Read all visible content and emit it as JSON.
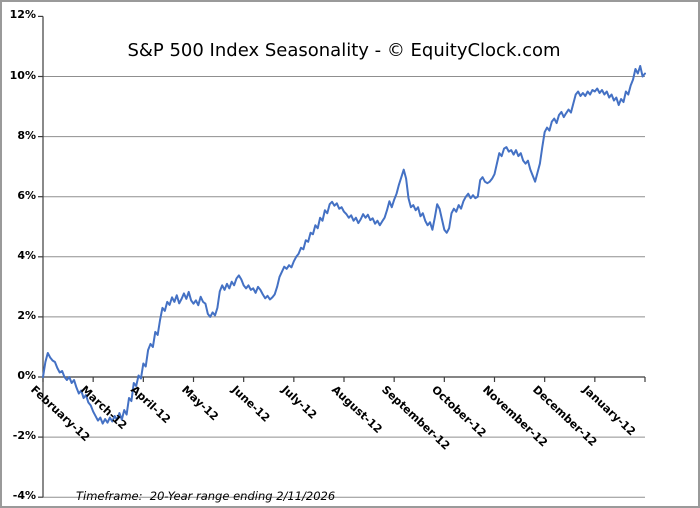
{
  "chart": {
    "title": "S&P 500 Index Seasonality - © EquityClock.com",
    "footnote": "Timeframe:  20-Year range ending 2/11/2026"
  },
  "colors": {
    "line": "#4471C4",
    "grid": "#8f8f8f",
    "axis": "#3c3c3c",
    "text": "#000000",
    "border": "#9a9a9a"
  },
  "chart_data": {
    "type": "line",
    "title": "S&P 500 Index Seasonality - © EquityClock.com",
    "footnote": "Timeframe:  20-Year range ending 2/11/2026",
    "xlabel": "",
    "ylabel": "",
    "ylim": [
      -4,
      12
    ],
    "grid": "horizontal",
    "legend": "none",
    "line_color": "#4471C4",
    "y_ticks": [
      12,
      10,
      8,
      6,
      4,
      2,
      0,
      -2,
      -4
    ],
    "y_tick_labels": [
      "12%",
      "10%",
      "8%",
      "6%",
      "4%",
      "2%",
      "0%",
      "-2%",
      "-4%"
    ],
    "x_categories": [
      "February-12",
      "March-12",
      "April-12",
      "May-12",
      "June-12",
      "July-12",
      "August-12",
      "September-12",
      "October-12",
      "November-12",
      "December-12",
      "January-12"
    ],
    "values": [
      0.0,
      0.5,
      0.8,
      0.65,
      0.55,
      0.5,
      0.3,
      0.15,
      0.2,
      0.0,
      -0.1,
      0.0,
      -0.2,
      -0.1,
      -0.35,
      -0.55,
      -0.45,
      -0.7,
      -0.6,
      -0.85,
      -0.95,
      -1.15,
      -1.3,
      -1.45,
      -1.35,
      -1.55,
      -1.4,
      -1.52,
      -1.35,
      -1.48,
      -1.3,
      -1.42,
      -1.2,
      -1.42,
      -1.1,
      -1.25,
      -0.7,
      -0.8,
      -0.2,
      -0.3,
      0.05,
      -0.05,
      0.45,
      0.35,
      0.9,
      1.1,
      1.0,
      1.5,
      1.4,
      1.9,
      2.3,
      2.2,
      2.5,
      2.4,
      2.65,
      2.5,
      2.72,
      2.45,
      2.6,
      2.78,
      2.6,
      2.83,
      2.55,
      2.44,
      2.55,
      2.39,
      2.67,
      2.5,
      2.44,
      2.1,
      2.0,
      2.15,
      2.05,
      2.3,
      2.85,
      3.05,
      2.9,
      3.1,
      2.95,
      3.17,
      3.05,
      3.28,
      3.38,
      3.25,
      3.05,
      2.95,
      3.05,
      2.9,
      2.95,
      2.8,
      3.0,
      2.9,
      2.75,
      2.62,
      2.7,
      2.58,
      2.65,
      2.75,
      3.0,
      3.33,
      3.5,
      3.67,
      3.6,
      3.72,
      3.65,
      3.85,
      4.0,
      4.1,
      4.3,
      4.25,
      4.55,
      4.5,
      4.8,
      4.75,
      5.05,
      4.95,
      5.3,
      5.2,
      5.55,
      5.45,
      5.75,
      5.83,
      5.7,
      5.78,
      5.6,
      5.65,
      5.5,
      5.42,
      5.3,
      5.38,
      5.2,
      5.3,
      5.12,
      5.25,
      5.42,
      5.3,
      5.4,
      5.22,
      5.28,
      5.1,
      5.2,
      5.05,
      5.18,
      5.3,
      5.55,
      5.85,
      5.65,
      5.9,
      6.1,
      6.4,
      6.65,
      6.9,
      6.6,
      5.95,
      5.65,
      5.72,
      5.55,
      5.65,
      5.35,
      5.45,
      5.2,
      5.05,
      5.15,
      4.9,
      5.3,
      5.75,
      5.6,
      5.25,
      4.9,
      4.8,
      4.95,
      5.45,
      5.6,
      5.5,
      5.72,
      5.6,
      5.85,
      6.0,
      6.1,
      5.95,
      6.05,
      5.95,
      6.0,
      6.55,
      6.65,
      6.5,
      6.45,
      6.5,
      6.6,
      6.75,
      7.1,
      7.45,
      7.35,
      7.6,
      7.65,
      7.5,
      7.55,
      7.4,
      7.55,
      7.35,
      7.45,
      7.2,
      7.1,
      7.2,
      6.9,
      6.7,
      6.5,
      6.8,
      7.1,
      7.65,
      8.15,
      8.3,
      8.2,
      8.5,
      8.6,
      8.45,
      8.72,
      8.82,
      8.65,
      8.78,
      8.9,
      8.8,
      9.1,
      9.4,
      9.5,
      9.35,
      9.45,
      9.35,
      9.5,
      9.4,
      9.55,
      9.5,
      9.6,
      9.45,
      9.55,
      9.4,
      9.5,
      9.3,
      9.4,
      9.2,
      9.3,
      9.05,
      9.25,
      9.15,
      9.5,
      9.4,
      9.7,
      9.9,
      10.25,
      10.1,
      10.35,
      10.0,
      10.1
    ]
  }
}
